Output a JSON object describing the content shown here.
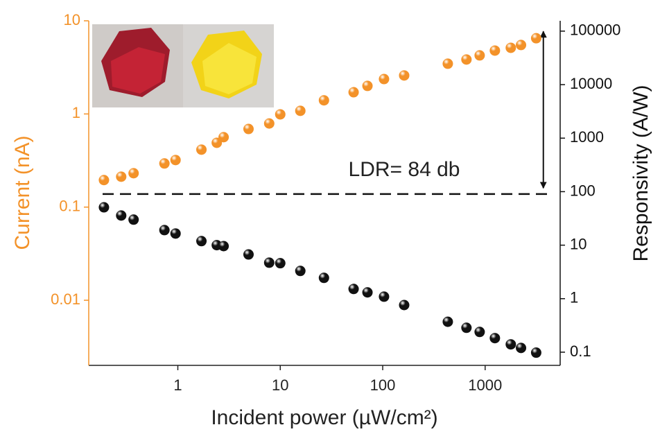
{
  "chart_data": {
    "type": "scatter",
    "x_label": "Incident power (µW/cm²)",
    "y_label": "Current (nA)",
    "y2_label": "Responsivity (A/W)",
    "annotation": "LDR= 84 db",
    "log_x": true,
    "log_y": true,
    "log_y2": true,
    "xlim": [
      0.135,
      5400
    ],
    "ylim": [
      0.002,
      10
    ],
    "y2lim": [
      0.0567,
      156000
    ],
    "xticks": [
      1,
      10,
      100,
      1000
    ],
    "yticks": [
      0.01,
      0.1,
      1,
      10
    ],
    "y2ticks": [
      0.1,
      1,
      10,
      100,
      1000,
      10000,
      100000
    ],
    "y_axis_color": "#f39229",
    "y2_axis_color": "#111111",
    "reference_line": 0.138,
    "arrow": {
      "x": 3700,
      "y": [
        0.16,
        7.7
      ]
    },
    "x": [
      0.19,
      0.28,
      0.37,
      0.74,
      0.95,
      1.7,
      2.4,
      2.8,
      4.9,
      7.8,
      10,
      15.7,
      26.7,
      52,
      71,
      103,
      162,
      432,
      657,
      884,
      1245,
      1780,
      2240,
      3150
    ],
    "series": [
      {
        "color": "#f39229",
        "values": [
          0.195,
          0.212,
          0.231,
          0.294,
          0.32,
          0.414,
          0.49,
          0.563,
          0.69,
          0.79,
          0.99,
          1.08,
          1.4,
          1.71,
          2.0,
          2.37,
          2.59,
          3.46,
          3.84,
          4.25,
          4.79,
          5.13,
          5.5,
          6.5
        ]
      },
      {
        "color": "#111111",
        "axis": "y2",
        "values": [
          51,
          35.8,
          30,
          19.1,
          16.5,
          11.9,
          10,
          9.6,
          6.7,
          4.7,
          4.6,
          3.3,
          2.45,
          1.52,
          1.31,
          1.09,
          0.76,
          0.37,
          0.286,
          0.239,
          0.183,
          0.14,
          0.12,
          0.098
        ]
      }
    ]
  }
}
